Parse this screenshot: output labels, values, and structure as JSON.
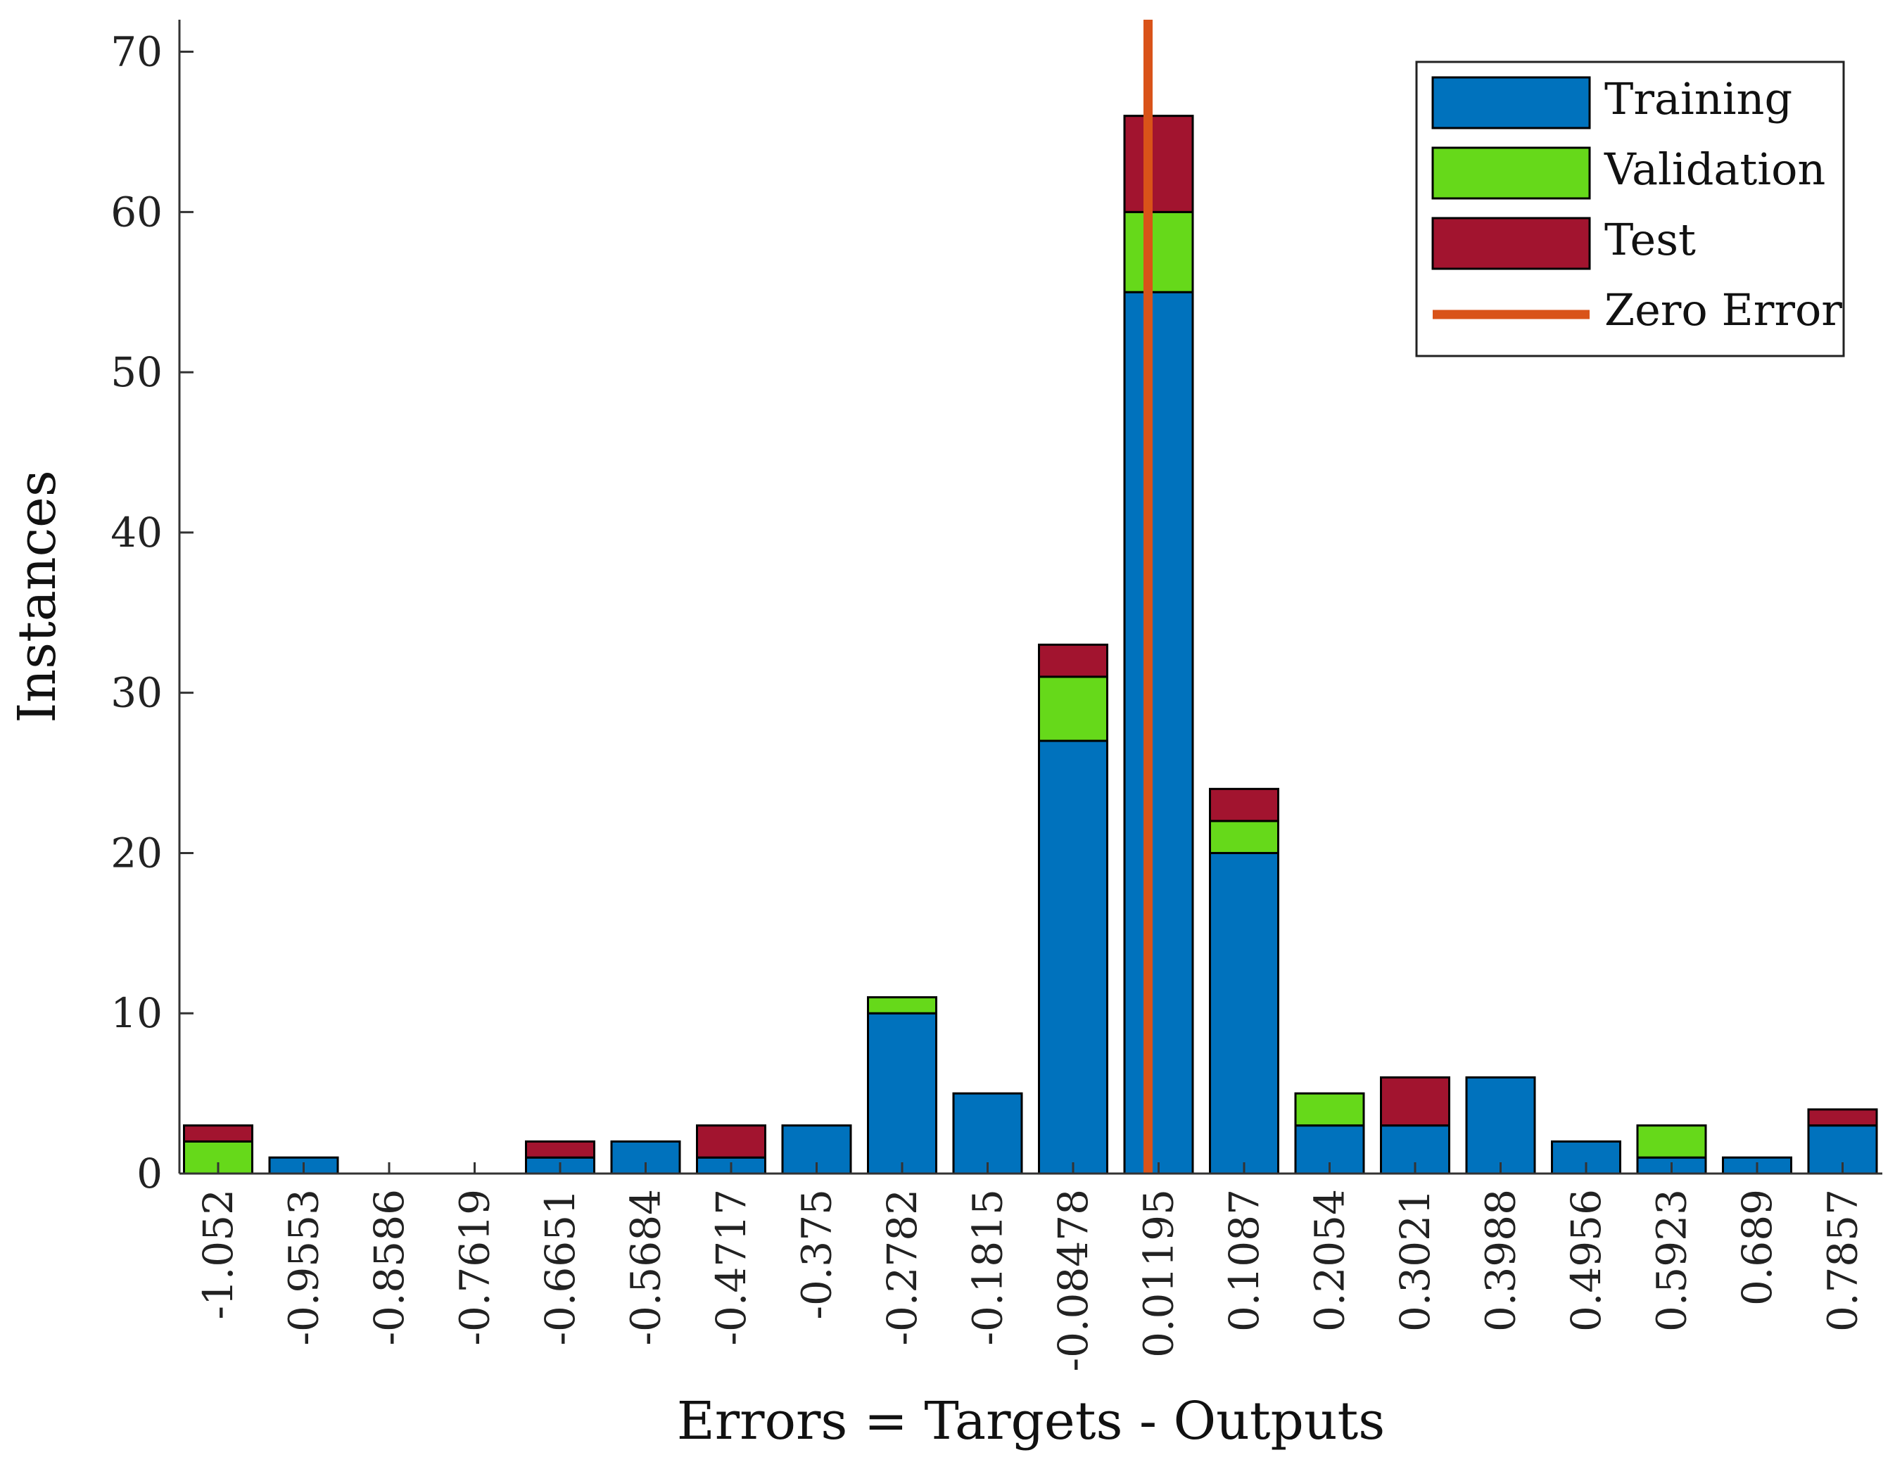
{
  "chart_data": {
    "type": "bar",
    "stacked": true,
    "title": "",
    "xlabel": "Errors = Targets - Outputs",
    "ylabel": "Instances",
    "ylim": [
      0,
      72
    ],
    "yticks": [
      0,
      10,
      20,
      30,
      40,
      50,
      60,
      70
    ],
    "grid": false,
    "legend_position": "top-right",
    "categories": [
      "-1.052",
      "-0.9553",
      "-0.8586",
      "-0.7619",
      "-0.6651",
      "-0.5684",
      "-0.4717",
      "-0.375",
      "-0.2782",
      "-0.1815",
      "-0.08478",
      "0.01195",
      "0.1087",
      "0.2054",
      "0.3021",
      "0.3988",
      "0.4956",
      "0.5923",
      "0.689",
      "0.7857"
    ],
    "series": [
      {
        "name": "Training",
        "color": "#0072BD",
        "values": [
          0,
          1,
          0,
          0,
          1,
          2,
          1,
          3,
          10,
          5,
          27,
          55,
          20,
          3,
          3,
          6,
          2,
          1,
          1,
          3
        ]
      },
      {
        "name": "Validation",
        "color": "#66D91A",
        "values": [
          2,
          0,
          0,
          0,
          0,
          0,
          0,
          0,
          1,
          0,
          4,
          5,
          2,
          2,
          0,
          0,
          0,
          2,
          0,
          0
        ]
      },
      {
        "name": "Test",
        "color": "#A2142F",
        "values": [
          1,
          0,
          0,
          0,
          1,
          0,
          2,
          0,
          0,
          0,
          2,
          6,
          2,
          0,
          3,
          0,
          0,
          0,
          0,
          1
        ]
      }
    ],
    "zero_error": {
      "name": "Zero Error",
      "color": "#D95319",
      "x": 0
    }
  }
}
